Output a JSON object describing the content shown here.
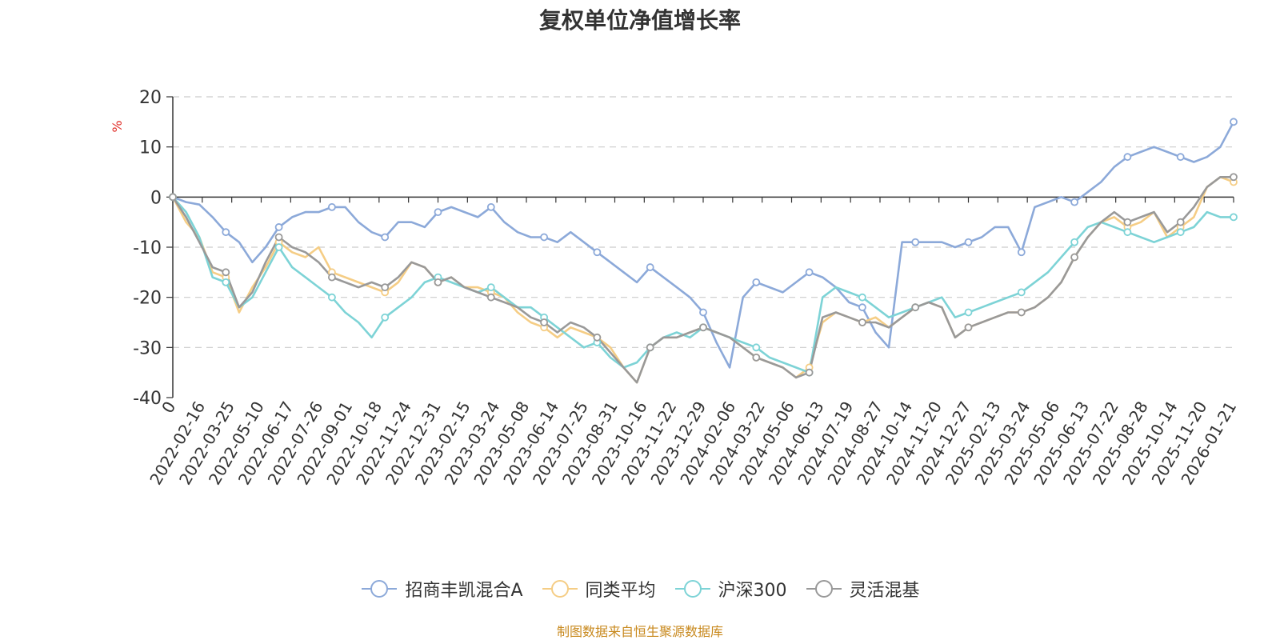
{
  "chart_data": {
    "type": "line",
    "title": "复权单位净值增长率",
    "ylabel": "%",
    "ylim": [
      -40,
      20
    ],
    "yticks": [
      20,
      10,
      0,
      -10,
      -20,
      -30,
      -40
    ],
    "grid": true,
    "x_start": "2022-01-04",
    "x_end": "2026-01-21",
    "x_tick_labels": [
      "0",
      "2022-02-16",
      "2022-03-25",
      "2022-05-10",
      "2022-06-17",
      "2022-07-26",
      "2022-09-01",
      "2022-10-18",
      "2022-11-24",
      "2022-12-31",
      "2023-02-15",
      "2023-03-24",
      "2023-05-08",
      "2023-06-14",
      "2023-07-25",
      "2023-08-31",
      "2023-10-16",
      "2023-11-22",
      "2023-12-29",
      "2024-02-06",
      "2024-03-22",
      "2024-05-06",
      "2024-06-13",
      "2024-07-19",
      "2024-08-27",
      "2024-10-14",
      "2024-11-20",
      "2024-12-27",
      "2025-02-13",
      "2025-03-24",
      "2025-05-06",
      "2025-06-13",
      "2025-07-22",
      "2025-08-28",
      "2025-10-14",
      "2025-11-20",
      "2026-01-21"
    ],
    "legend_position": "bottom",
    "series": [
      {
        "name": "招商丰凯混合A",
        "color": "#8ca9d9",
        "values": [
          0,
          -1,
          -1.5,
          -4,
          -7,
          -9,
          -13,
          -10,
          -6,
          -4,
          -3,
          -3,
          -2,
          -2,
          -5,
          -7,
          -8,
          -5,
          -5,
          -6,
          -3,
          -2,
          -3,
          -4,
          -2,
          -5,
          -7,
          -8,
          -8,
          -9,
          -7,
          -9,
          -11,
          -13,
          -15,
          -17,
          -14,
          -16,
          -18,
          -20,
          -23,
          -29,
          -34,
          -20,
          -17,
          -18,
          -19,
          -17,
          -15,
          -16,
          -18,
          -21,
          -22,
          -27,
          -30,
          -9,
          -9,
          -9,
          -9,
          -10,
          -9,
          -8,
          -6,
          -6,
          -11,
          -2,
          -1,
          0,
          -1,
          1,
          3,
          6,
          8,
          9,
          10,
          9,
          8,
          7,
          8,
          10,
          15
        ]
      },
      {
        "name": "同类平均",
        "color": "#f5cd85",
        "values": [
          0,
          -5,
          -8,
          -15,
          -16,
          -23,
          -18,
          -14,
          -9,
          -11,
          -12,
          -10,
          -15,
          -16,
          -17,
          -18,
          -19,
          -17,
          -13,
          -14,
          -17,
          -16,
          -18,
          -18,
          -19,
          -20,
          -23,
          -25,
          -26,
          -28,
          -26,
          -27,
          -28,
          -30,
          -34,
          -37,
          -30,
          -28,
          -28,
          -27,
          -26,
          -27,
          -28,
          -30,
          -32,
          -33,
          -34,
          -36,
          -34,
          -25,
          -23,
          -24,
          -25,
          -24,
          -26,
          -24,
          -22,
          -21,
          -22,
          -28,
          -26,
          -25,
          -24,
          -23,
          -23,
          -22,
          -20,
          -17,
          -12,
          -8,
          -5,
          -4,
          -6,
          -5,
          -3,
          -8,
          -6,
          -4,
          2,
          4,
          3
        ]
      },
      {
        "name": "沪深300",
        "color": "#7dd3d6",
        "values": [
          0,
          -3,
          -8,
          -16,
          -17,
          -22,
          -20,
          -15,
          -10,
          -14,
          -16,
          -18,
          -20,
          -23,
          -25,
          -28,
          -24,
          -22,
          -20,
          -17,
          -16,
          -17,
          -18,
          -19,
          -18,
          -20,
          -22,
          -22,
          -24,
          -26,
          -28,
          -30,
          -29,
          -32,
          -34,
          -33,
          -30,
          -28,
          -27,
          -28,
          -26,
          -27,
          -28,
          -29,
          -30,
          -32,
          -33,
          -34,
          -35,
          -20,
          -18,
          -19,
          -20,
          -22,
          -24,
          -23,
          -22,
          -21,
          -20,
          -24,
          -23,
          -22,
          -21,
          -20,
          -19,
          -17,
          -15,
          -12,
          -9,
          -6,
          -5,
          -6,
          -7,
          -8,
          -9,
          -8,
          -7,
          -6,
          -3,
          -4,
          -4
        ]
      },
      {
        "name": "灵活混基",
        "color": "#999999",
        "values": [
          0,
          -4,
          -9,
          -14,
          -15,
          -22,
          -19,
          -13,
          -8,
          -10,
          -11,
          -13,
          -16,
          -17,
          -18,
          -17,
          -18,
          -16,
          -13,
          -14,
          -17,
          -16,
          -18,
          -19,
          -20,
          -21,
          -22,
          -24,
          -25,
          -27,
          -25,
          -26,
          -28,
          -31,
          -34,
          -37,
          -30,
          -28,
          -28,
          -27,
          -26,
          -27,
          -28,
          -30,
          -32,
          -33,
          -34,
          -36,
          -35,
          -24,
          -23,
          -24,
          -25,
          -25,
          -26,
          -24,
          -22,
          -21,
          -22,
          -28,
          -26,
          -25,
          -24,
          -23,
          -23,
          -22,
          -20,
          -17,
          -12,
          -8,
          -5,
          -3,
          -5,
          -4,
          -3,
          -7,
          -5,
          -2,
          2,
          4,
          4
        ]
      }
    ]
  },
  "legend_items": [
    {
      "label": "招商丰凯混合A"
    },
    {
      "label": "同类平均"
    },
    {
      "label": "沪深300"
    },
    {
      "label": "灵活混基"
    }
  ],
  "source_note": "制图数据来自恒生聚源数据库"
}
